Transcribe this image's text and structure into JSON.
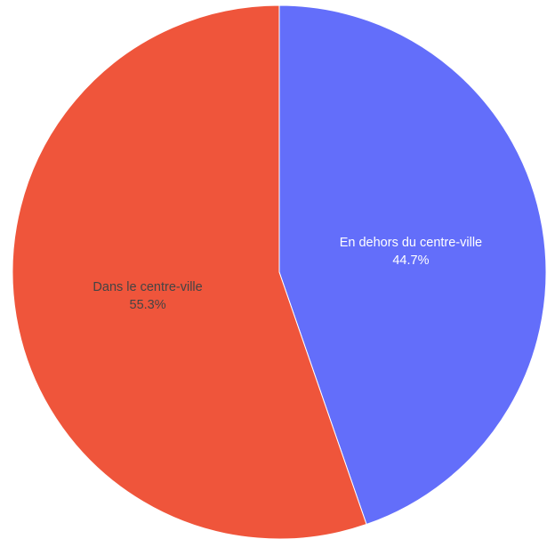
{
  "chart_data": {
    "type": "pie",
    "title": "",
    "slices": [
      {
        "label": "En dehors du centre-ville",
        "value": 44.7,
        "display": "44.7%",
        "color": "#636efa",
        "label_color": "#ffffff"
      },
      {
        "label": "Dans le centre-ville",
        "value": 55.3,
        "display": "55.3%",
        "color": "#ef553b",
        "label_color": "#444444"
      }
    ],
    "start_angle": "12 o'clock",
    "direction": "clockwise",
    "legend": "none"
  }
}
